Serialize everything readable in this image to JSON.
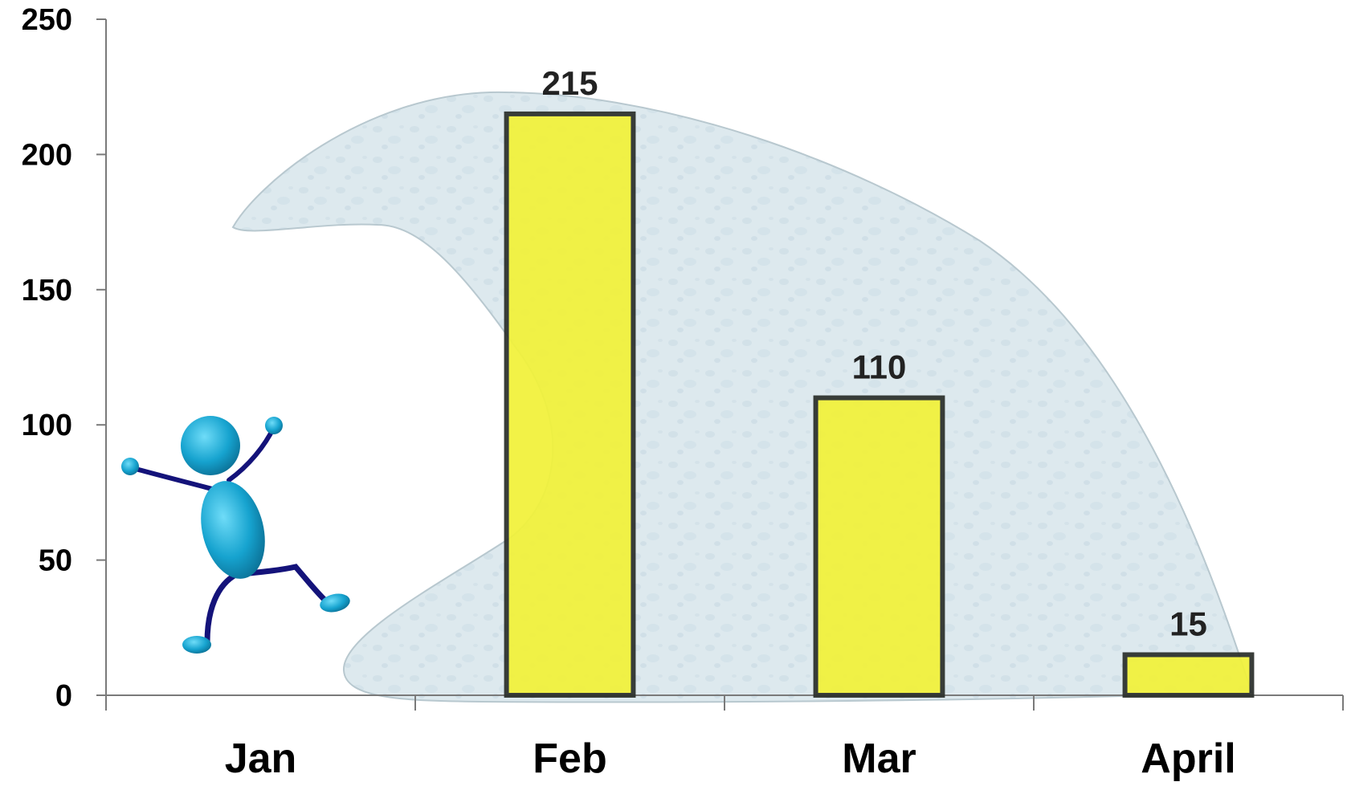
{
  "chart_data": {
    "type": "bar",
    "categories": [
      "Jan",
      "Feb",
      "Mar",
      "April"
    ],
    "values": [
      null,
      215,
      110,
      15
    ],
    "data_labels": [
      "",
      "215",
      "110",
      "15"
    ],
    "y_ticks": [
      "0",
      "50",
      "100",
      "150",
      "200",
      "250"
    ],
    "ylim": [
      0,
      250
    ],
    "grid": false,
    "title": "",
    "xlabel": "",
    "ylabel": "",
    "colors": {
      "bar_fill": "#f2f23a",
      "bar_stroke": "#2b2f2b",
      "wave_fill": "#dbe9ef",
      "wave_stroke": "#b9c8cf",
      "figure_body": "#16a3cf",
      "figure_limbs": "#14137a"
    },
    "decorations": {
      "wave": "wave-illustration",
      "figure": "running-stick-figure"
    }
  }
}
